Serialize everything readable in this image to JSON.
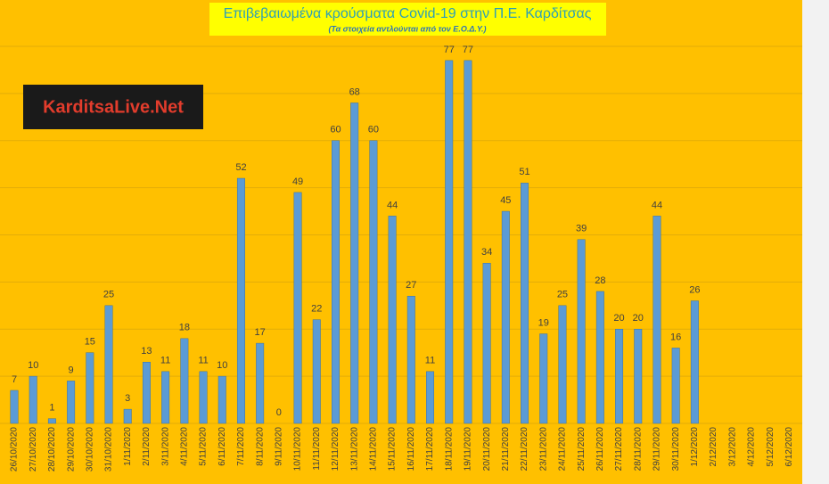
{
  "chart_data": {
    "type": "bar",
    "title": "Επιβεβαιωμένα κρούσματα Covid-19 στην Π.Ε. Καρδίτσας",
    "subtitle": "(Τα στοιχεία αντλούνται από τον Ε.Ο.Δ.Υ.)",
    "annotations": [
      "KarditsaLive.Net"
    ],
    "categories": [
      "26/10/2020",
      "27/10/2020",
      "28/10/2020",
      "29/10/2020",
      "30/10/2020",
      "31/10/2020",
      "1/11/2020",
      "2/11/2020",
      "3/11/2020",
      "4/11/2020",
      "5/11/2020",
      "6/11/2020",
      "7/11/2020",
      "8/11/2020",
      "9/11/2020",
      "10/11/2020",
      "11/11/2020",
      "12/11/2020",
      "13/11/2020",
      "14/11/2020",
      "15/11/2020",
      "16/11/2020",
      "17/11/2020",
      "18/11/2020",
      "19/11/2020",
      "20/11/2020",
      "21/11/2020",
      "22/11/2020",
      "23/11/2020",
      "24/11/2020",
      "25/11/2020",
      "26/11/2020",
      "27/11/2020",
      "28/11/2020",
      "29/11/2020",
      "30/11/2020",
      "1/12/2020",
      "2/12/2020",
      "3/12/2020",
      "4/12/2020",
      "5/12/2020",
      "6/12/2020"
    ],
    "values": [
      7,
      10,
      1,
      9,
      15,
      25,
      3,
      13,
      11,
      18,
      11,
      10,
      52,
      17,
      0,
      49,
      22,
      60,
      68,
      60,
      44,
      27,
      11,
      77,
      77,
      34,
      45,
      51,
      19,
      25,
      39,
      28,
      20,
      20,
      44,
      16,
      26,
      null,
      null,
      null,
      null,
      null
    ],
    "color": "#5b9bd5",
    "ylim": [
      0,
      80
    ],
    "yticks": [
      0,
      10,
      20,
      30,
      40,
      50,
      60,
      70,
      80
    ],
    "grid": true
  }
}
